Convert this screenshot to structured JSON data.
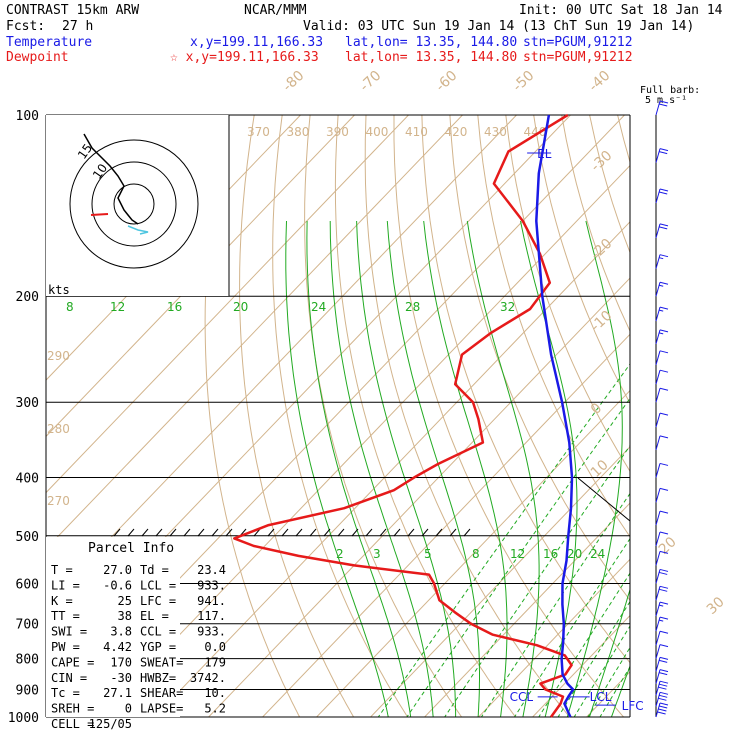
{
  "header": {
    "model": "CONTRAST 15km ARW",
    "center": "NCAR/MMM",
    "init": "Init: 00 UTC Sat 18 Jan 14",
    "fcst_label": "Fcst:",
    "fcst_value": "27 h",
    "valid": "Valid: 03 UTC Sun 19 Jan 14 (13 ChT Sun 19 Jan 14)",
    "temp_label": "Temperature",
    "temp_xy": "x,y=199.11,166.33",
    "temp_latlon": "lat,lon= 13.35, 144.80",
    "temp_stn": "stn=PGUM,91212",
    "dew_label": "Dewpoint",
    "dew_xy": "☆ x,y=199.11,166.33",
    "dew_latlon": "lat,lon= 13.35, 144.80",
    "dew_stn": "stn=PGUM,91212",
    "barb_label_1": "Full barb:",
    "barb_label_2": "5 m s⁻¹"
  },
  "colors": {
    "temperature": "#1a1ae6",
    "dewpoint": "#e61a1a",
    "isotherm": "#d2b48c",
    "mixing": "#22aa22"
  },
  "chart_data": {
    "type": "skew-t",
    "pressure_levels": [
      100,
      200,
      300,
      400,
      500,
      600,
      700,
      800,
      900,
      1000
    ],
    "isotherm_labels": [
      "-80",
      "-70",
      "-60",
      "-50",
      "-40",
      "-30",
      "-20",
      "-10",
      "0",
      "10",
      "20",
      "30",
      "40"
    ],
    "theta_labels": [
      "370",
      "380",
      "390",
      "400",
      "410",
      "420",
      "430",
      "440"
    ],
    "theta_left_labels": [
      "290",
      "280",
      "270"
    ],
    "mixing_ratio_top": [
      "8",
      "12",
      "16",
      "20",
      "24",
      "28",
      "32"
    ],
    "mixing_ratio_bottom": [
      "2",
      "3",
      "5",
      "8",
      "12",
      "16",
      "20",
      "24"
    ],
    "temperature_profile": {
      "name": "Temperature",
      "p": [
        1000,
        950,
        925,
        900,
        880,
        850,
        800,
        750,
        700,
        650,
        600,
        550,
        500,
        450,
        400,
        350,
        300,
        250,
        200,
        150,
        125,
        100
      ],
      "t": [
        27.0,
        23.5,
        23.0,
        22.6,
        20.5,
        18.0,
        15.0,
        12.3,
        9.2,
        5.5,
        1.8,
        -1.5,
        -5.6,
        -10.0,
        -15.3,
        -22.0,
        -30.5,
        -41.0,
        -53.0,
        -67.5,
        -75.5,
        -84.0
      ]
    },
    "dewpoint_profile": {
      "name": "Dewpoint",
      "p": [
        1000,
        950,
        925,
        900,
        880,
        850,
        820,
        790,
        760,
        730,
        700,
        670,
        640,
        600,
        580,
        560,
        540,
        520,
        505,
        480,
        450,
        420,
        400,
        380,
        350,
        320,
        300,
        280,
        250,
        230,
        210,
        190,
        170,
        150,
        130,
        115,
        100
      ],
      "t": [
        23.4,
        22.8,
        22.0,
        17.5,
        15.5,
        18.5,
        18.0,
        15.0,
        8.0,
        -2.0,
        -8.0,
        -13.0,
        -18.0,
        -22.0,
        -24.5,
        -40.0,
        -52.0,
        -62.0,
        -67.0,
        -63.0,
        -52.0,
        -46.0,
        -44.5,
        -42.5,
        -38.0,
        -43.0,
        -47.0,
        -53.5,
        -57.5,
        -56.0,
        -53.0,
        -54.0,
        -61.0,
        -70.0,
        -82.0,
        -85.0,
        -80.5
      ]
    },
    "annotations": {
      "el": "EL",
      "ccl": "CCL",
      "lcl": "LCL",
      "lfc": "LFC",
      "kts": "kts",
      "hodo_15": "15",
      "hodo_10": "10"
    },
    "parcel_info": {
      "title": "Parcel Info",
      "rows": [
        [
          "T  =",
          "27.0",
          "Td =",
          "23.4"
        ],
        [
          "LI =",
          "-0.6",
          "LCL =",
          "933."
        ],
        [
          "K  =",
          "25",
          "LFC =",
          "941."
        ],
        [
          "TT =",
          "38",
          "EL =",
          "117."
        ],
        [
          "SWI =",
          "3.8",
          "CCL =",
          "933."
        ],
        [
          "PW =",
          "4.42",
          "YGP =",
          "0.0"
        ],
        [
          "CAPE =",
          "170",
          "SWEAT=",
          "179"
        ],
        [
          "CIN =",
          "-30",
          "HWBZ=",
          "3742."
        ],
        [
          "Tc =",
          "27.1",
          "SHEAR=",
          "10."
        ],
        [
          "SREH =",
          "0",
          "LAPSE=",
          "5.2"
        ],
        [
          "CELL =",
          "125/05",
          "",
          ""
        ]
      ]
    },
    "wind_profile": {
      "p": [
        100,
        120,
        140,
        160,
        180,
        200,
        220,
        240,
        260,
        280,
        300,
        330,
        360,
        400,
        440,
        480,
        520,
        560,
        600,
        640,
        680,
        720,
        760,
        800,
        840,
        880,
        920,
        960,
        1000
      ],
      "speed_ms": [
        12,
        12,
        10,
        10,
        8,
        8,
        8,
        8,
        6,
        6,
        6,
        6,
        5,
        5,
        5,
        5,
        5,
        5,
        10,
        10,
        8,
        8,
        5,
        5,
        10,
        12,
        15,
        15,
        20
      ]
    }
  }
}
